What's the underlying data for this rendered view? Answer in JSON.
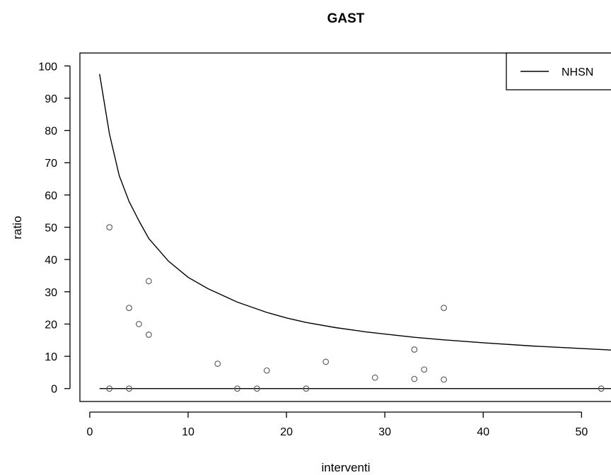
{
  "chart_data": {
    "type": "scatter",
    "title": "GAST",
    "xlabel": "interventi",
    "ylabel": "ratio",
    "xlim": [
      -1,
      54
    ],
    "ylim": [
      -4,
      104
    ],
    "xticks": [
      0,
      10,
      20,
      30,
      40,
      50
    ],
    "yticks": [
      0,
      10,
      20,
      30,
      40,
      50,
      60,
      70,
      80,
      90,
      100
    ],
    "grid": false,
    "legend": {
      "position": "top-right",
      "entries": [
        "NHSN"
      ]
    },
    "points": {
      "x": [
        2,
        2,
        4,
        4,
        5,
        6,
        6,
        13,
        15,
        17,
        18,
        22,
        24,
        29,
        33,
        33,
        34,
        36,
        36,
        52
      ],
      "y": [
        0,
        50,
        0,
        25,
        20,
        33.3,
        16.7,
        7.7,
        0,
        0,
        5.6,
        0,
        8.3,
        3.4,
        12.1,
        3,
        5.9,
        2.8,
        25,
        0
      ]
    },
    "series": [
      {
        "name": "NHSN",
        "x": [
          1,
          2,
          3,
          4,
          5,
          6,
          8,
          10,
          12,
          15,
          18,
          20,
          22,
          25,
          28,
          30,
          33,
          36,
          40,
          45,
          50,
          54
        ],
        "y": [
          97.5,
          79,
          66,
          58,
          52,
          46.5,
          39.5,
          34.5,
          31,
          26.8,
          23.6,
          21.9,
          20.5,
          18.9,
          17.6,
          16.9,
          15.9,
          15.1,
          14.2,
          13.2,
          12.4,
          11.8
        ]
      },
      {
        "name": "",
        "x": [
          1,
          54
        ],
        "y": [
          0,
          0
        ]
      }
    ]
  }
}
